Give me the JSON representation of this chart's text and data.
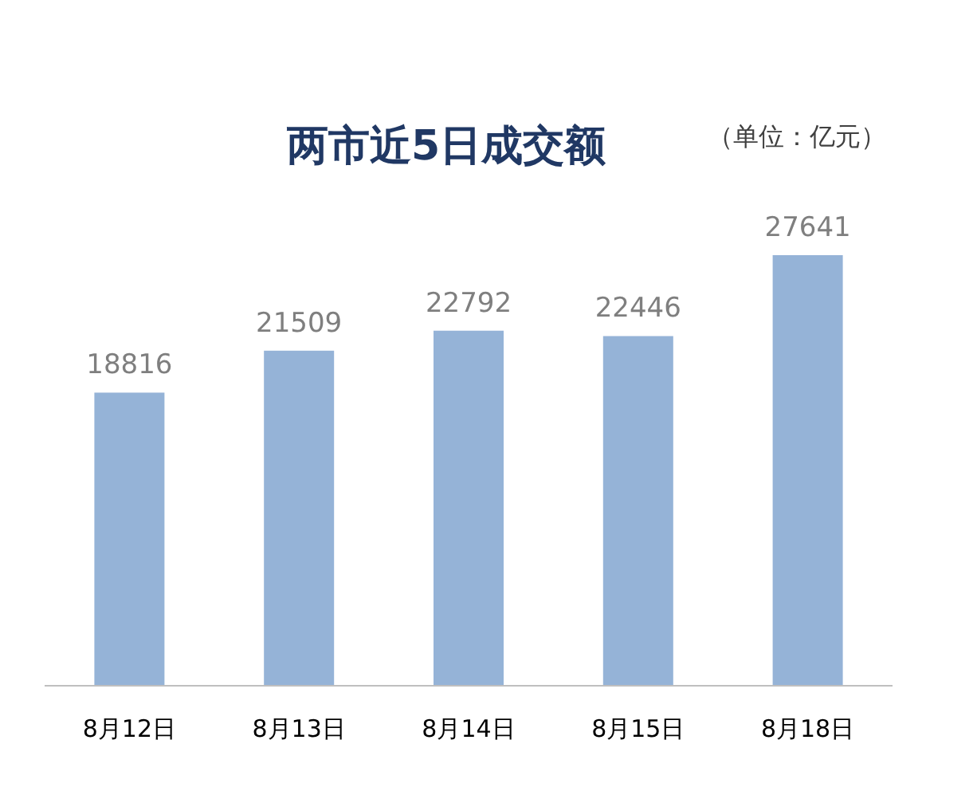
{
  "chart_data": {
    "type": "bar",
    "title": "两市近5日成交额",
    "subtitle": "（单位：亿元）",
    "categories": [
      "8月12日",
      "8月13日",
      "8月14日",
      "8月15日",
      "8月18日"
    ],
    "values": [
      18816,
      21509,
      22792,
      22446,
      27641
    ],
    "color": "#95b3d7",
    "data_labels": true
  }
}
